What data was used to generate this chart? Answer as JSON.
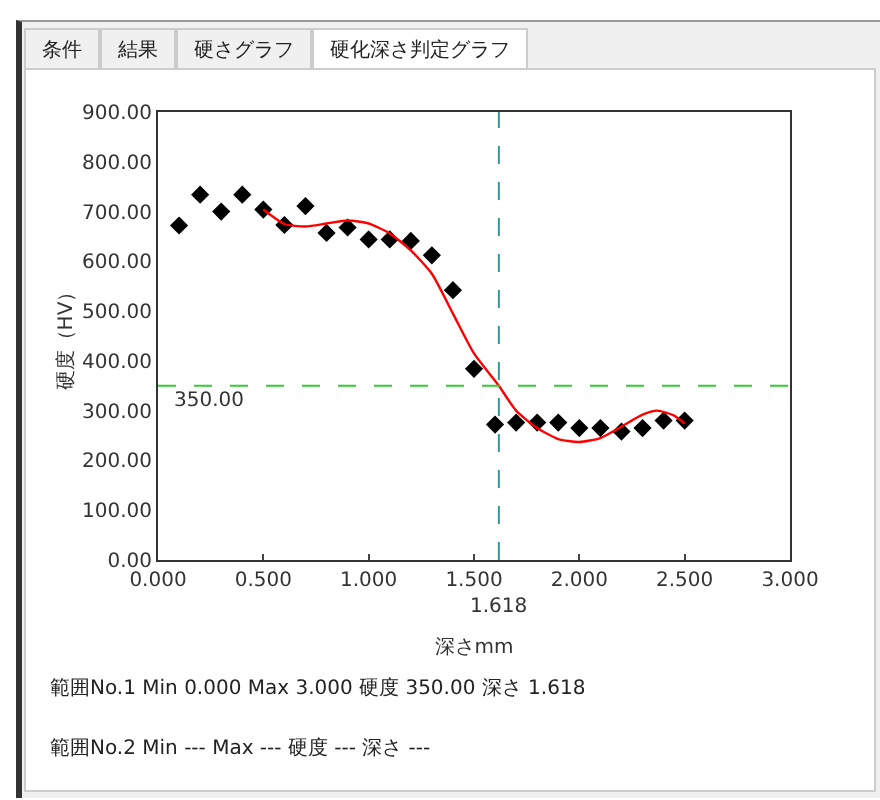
{
  "chart_data": {
    "type": "scatter",
    "xlabel": "深さmm",
    "ylabel": "硬度（HV）",
    "annotations": [
      "条件",
      "結果",
      "硬さグラフ",
      "硬化深さ判定グラフ",
      "範囲No.1 Min 0.000  Max 3.000  硬度 350.00  深さ 1.618",
      "範囲No.2 Min ---  Max ---  硬度 ---  深さ ---"
    ],
    "x": [
      0.1,
      0.2,
      0.3,
      0.4,
      0.5,
      0.6,
      0.7,
      0.8,
      0.9,
      1.0,
      1.1,
      1.2,
      1.3,
      1.4,
      1.5,
      1.6,
      1.7,
      1.8,
      1.9,
      2.0,
      2.1,
      2.2,
      2.3,
      2.4,
      2.5
    ],
    "series": [
      {
        "color": "#000000",
        "marker": "diamond",
        "values": [
          672,
          734,
          700,
          734,
          704,
          673,
          711,
          657,
          668,
          644,
          644,
          641,
          612,
          542,
          384,
          272,
          276,
          276,
          276,
          265,
          265,
          258,
          265,
          280,
          280
        ]
      },
      {
        "type": "line",
        "color": "#ff0000",
        "marker": "none",
        "line_style": "solid",
        "x": [
          0.5,
          0.6,
          0.7,
          0.8,
          0.9,
          1.0,
          1.1,
          1.2,
          1.3,
          1.4,
          1.5,
          1.618,
          1.7,
          1.8,
          1.9,
          2.0,
          2.1,
          2.2,
          2.3,
          2.37,
          2.45,
          2.5
        ],
        "values": [
          704,
          675,
          670,
          676,
          682,
          676,
          656,
          622,
          575,
          495,
          415,
          350,
          300,
          265,
          243,
          237,
          245,
          268,
          292,
          300,
          290,
          274
        ]
      }
    ],
    "xlim": [
      0,
      3
    ],
    "ylim": [
      0,
      900
    ],
    "xticks": [
      {
        "value": 0,
        "label": "0.000"
      },
      {
        "value": 0.5,
        "label": "0.500"
      },
      {
        "value": 1,
        "label": "1.000"
      },
      {
        "value": 1.5,
        "label": "1.500"
      },
      {
        "value": 2,
        "label": "2.000"
      },
      {
        "value": 2.5,
        "label": "2.500"
      },
      {
        "value": 3,
        "label": "3.000"
      }
    ],
    "yticks": [
      {
        "value": 0,
        "label": "0.00"
      },
      {
        "value": 100,
        "label": "100.00"
      },
      {
        "value": 200,
        "label": "200.00"
      },
      {
        "value": 300,
        "label": "300.00"
      },
      {
        "value": 400,
        "label": "400.00"
      },
      {
        "value": 500,
        "label": "500.00"
      },
      {
        "value": 600,
        "label": "600.00"
      },
      {
        "value": 700,
        "label": "700.00"
      },
      {
        "value": 800,
        "label": "800.00"
      },
      {
        "value": 900,
        "label": "900.00"
      }
    ],
    "ref_lines": [
      {
        "axis": "y",
        "value": 350,
        "label": "350.00",
        "color": "#33cc33",
        "line_style": "dashed"
      },
      {
        "axis": "x",
        "value": 1.618,
        "label": "1.618",
        "color": "#339999",
        "line_style": "dashed"
      }
    ],
    "grid": false
  }
}
